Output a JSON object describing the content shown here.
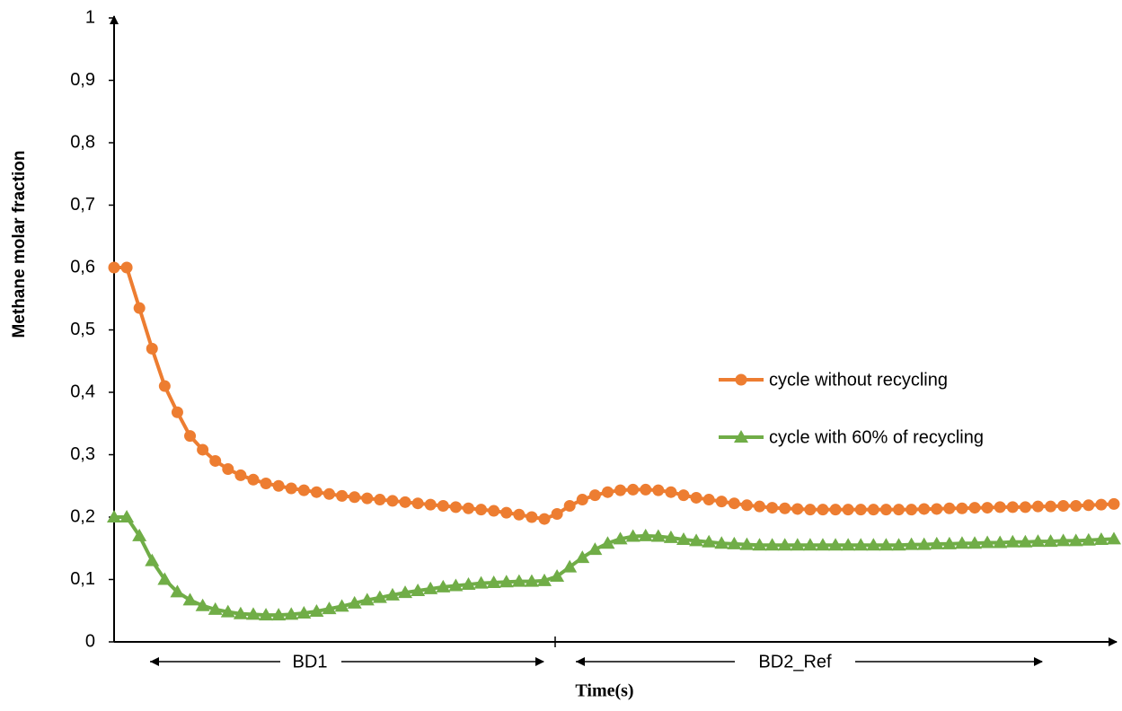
{
  "chart_data": {
    "type": "line",
    "x_label": "Time(s)",
    "y_label": "Methane molar fraction",
    "categories": [
      null,
      null,
      null,
      null,
      null,
      null,
      null,
      null,
      null,
      null,
      null,
      null,
      null,
      null,
      null,
      null,
      null,
      null,
      null,
      null,
      null,
      null,
      null,
      null,
      null,
      null,
      null,
      null,
      null,
      null,
      null,
      null,
      null,
      null,
      null,
      null,
      null,
      null,
      null,
      null,
      null,
      null,
      null,
      null,
      null,
      null,
      null,
      null,
      null,
      null,
      null,
      null,
      null,
      null,
      null,
      null,
      null,
      null,
      null,
      null,
      null,
      null,
      null,
      null,
      null,
      null,
      null,
      null,
      null,
      null,
      null,
      null,
      null,
      null,
      null,
      null,
      null,
      null,
      null,
      null
    ],
    "ylim": [
      0,
      1
    ],
    "yticks": [
      0,
      {
        "value": 0.1,
        "label": "0,1"
      },
      {
        "value": 0.2,
        "label": "0,2"
      },
      {
        "value": 0.3,
        "label": "0,3"
      },
      {
        "value": 0.4,
        "label": "0,4"
      },
      {
        "value": 0.5,
        "label": "0,5"
      },
      {
        "value": 0.6,
        "label": "0,6"
      },
      {
        "value": 0.7,
        "label": "0,7"
      },
      {
        "value": 0.8,
        "label": "0,8"
      },
      {
        "value": 0.9,
        "label": "0,9"
      },
      1
    ],
    "grid": false,
    "series": [
      {
        "name": "cycle without recycling",
        "color": "#ed7d31",
        "marker": "circle",
        "values": [
          0.6,
          0.6,
          0.535,
          0.47,
          0.41,
          0.368,
          0.33,
          0.308,
          0.29,
          0.277,
          0.267,
          0.26,
          0.254,
          0.25,
          0.246,
          0.243,
          0.24,
          0.237,
          0.234,
          0.232,
          0.23,
          0.228,
          0.226,
          0.224,
          0.222,
          0.22,
          0.218,
          0.216,
          0.214,
          0.212,
          0.21,
          0.207,
          0.204,
          0.2,
          0.197,
          0.205,
          0.218,
          0.228,
          0.235,
          0.24,
          0.243,
          0.244,
          0.244,
          0.243,
          0.24,
          0.235,
          0.231,
          0.228,
          0.225,
          0.222,
          0.219,
          0.217,
          0.215,
          0.214,
          0.213,
          0.212,
          0.212,
          0.212,
          0.212,
          0.212,
          0.212,
          0.212,
          0.212,
          0.212,
          0.213,
          0.213,
          0.214,
          0.214,
          0.215,
          0.215,
          0.216,
          0.216,
          0.216,
          0.217,
          0.217,
          0.218,
          0.218,
          0.219,
          0.22,
          0.221
        ]
      },
      {
        "name": "cycle with 60% of recycling",
        "color": "#70ad47",
        "marker": "triangle",
        "values": [
          0.2,
          0.2,
          0.17,
          0.13,
          0.1,
          0.08,
          0.067,
          0.058,
          0.052,
          0.048,
          0.045,
          0.044,
          0.043,
          0.043,
          0.044,
          0.046,
          0.049,
          0.053,
          0.057,
          0.062,
          0.067,
          0.071,
          0.075,
          0.079,
          0.082,
          0.085,
          0.088,
          0.09,
          0.092,
          0.094,
          0.095,
          0.096,
          0.097,
          0.097,
          0.098,
          0.105,
          0.12,
          0.135,
          0.148,
          0.158,
          0.165,
          0.169,
          0.17,
          0.169,
          0.167,
          0.164,
          0.162,
          0.16,
          0.158,
          0.157,
          0.156,
          0.155,
          0.155,
          0.155,
          0.155,
          0.155,
          0.155,
          0.155,
          0.155,
          0.155,
          0.155,
          0.155,
          0.155,
          0.156,
          0.156,
          0.157,
          0.157,
          0.158,
          0.158,
          0.159,
          0.159,
          0.16,
          0.16,
          0.161,
          0.161,
          0.162,
          0.162,
          0.163,
          0.164,
          0.165
        ]
      }
    ],
    "annotations": [
      "BD1",
      "BD2_Ref"
    ]
  }
}
